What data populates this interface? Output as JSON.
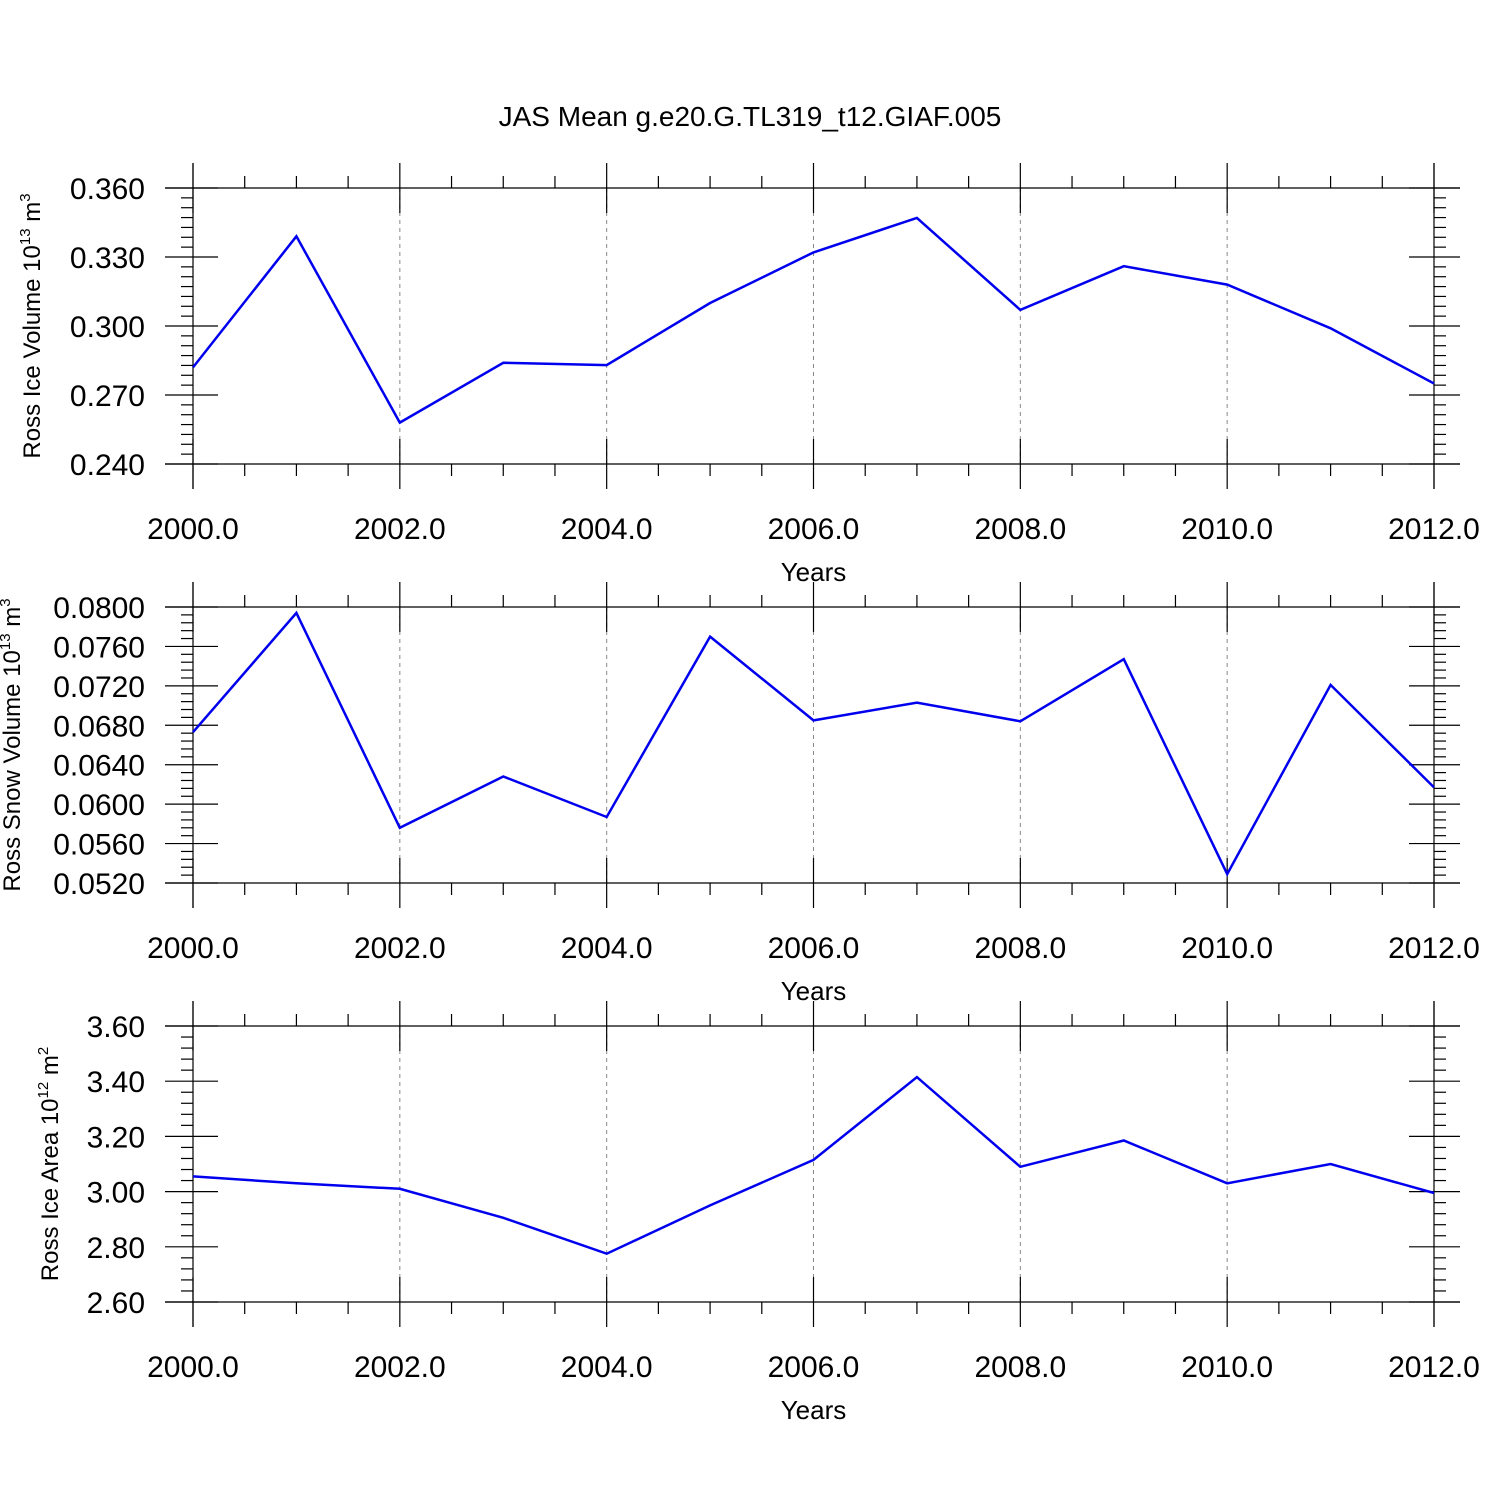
{
  "title": "JAS Mean g.e20.G.TL319_t12.GIAF.005",
  "chart_data": [
    {
      "type": "line",
      "title": "JAS Mean g.e20.G.TL319_t12.GIAF.005",
      "xlabel": "Years",
      "ylabel": {
        "main": "Ross Ice Volume 10",
        "sup": "13",
        "unit": " m",
        "unit_sup": "3"
      },
      "x": [
        2000,
        2001,
        2002,
        2003,
        2004,
        2005,
        2006,
        2007,
        2008,
        2009,
        2010,
        2011,
        2012
      ],
      "series": [
        {
          "values": [
            0.282,
            0.339,
            0.258,
            0.284,
            0.283,
            0.31,
            0.332,
            0.347,
            0.307,
            0.326,
            0.318,
            0.299,
            0.275
          ]
        }
      ],
      "xlim": [
        2000,
        2012
      ],
      "ylim": [
        0.24,
        0.36
      ],
      "xticks": [
        "2000.0",
        "2002.0",
        "2004.0",
        "2006.0",
        "2008.0",
        "2010.0",
        "2012.0"
      ],
      "yticks": [
        "0.240",
        "0.270",
        "0.300",
        "0.330",
        "0.360"
      ],
      "grid": "x-major-dashed",
      "color": "#0000ee"
    },
    {
      "type": "line",
      "xlabel": "Years",
      "ylabel": {
        "main": "Ross Snow Volume 10",
        "sup": "13",
        "unit": " m",
        "unit_sup": "3"
      },
      "x": [
        2000,
        2001,
        2002,
        2003,
        2004,
        2005,
        2006,
        2007,
        2008,
        2009,
        2010,
        2011,
        2012
      ],
      "series": [
        {
          "values": [
            0.0673,
            0.0794,
            0.0576,
            0.0628,
            0.0587,
            0.077,
            0.0685,
            0.0703,
            0.0684,
            0.0747,
            0.0529,
            0.0721,
            0.0617
          ]
        }
      ],
      "xlim": [
        2000,
        2012
      ],
      "ylim": [
        0.052,
        0.08
      ],
      "xticks": [
        "2000.0",
        "2002.0",
        "2004.0",
        "2006.0",
        "2008.0",
        "2010.0",
        "2012.0"
      ],
      "yticks": [
        "0.0520",
        "0.0560",
        "0.0600",
        "0.0640",
        "0.0680",
        "0.0720",
        "0.0760",
        "0.0800"
      ],
      "grid": "x-major-dashed",
      "color": "#0000ee"
    },
    {
      "type": "line",
      "xlabel": "Years",
      "ylabel": {
        "main": "Ross Ice Area 10",
        "sup": "12",
        "unit": " m",
        "unit_sup": "2"
      },
      "x": [
        2000,
        2001,
        2002,
        2003,
        2004,
        2005,
        2006,
        2007,
        2008,
        2009,
        2010,
        2011,
        2012
      ],
      "series": [
        {
          "values": [
            3.055,
            3.03,
            3.01,
            2.905,
            2.775,
            2.95,
            3.115,
            3.415,
            3.09,
            3.185,
            3.03,
            3.1,
            2.995
          ]
        }
      ],
      "xlim": [
        2000,
        2012
      ],
      "ylim": [
        2.6,
        3.6
      ],
      "xticks": [
        "2000.0",
        "2002.0",
        "2004.0",
        "2006.0",
        "2008.0",
        "2010.0",
        "2012.0"
      ],
      "yticks": [
        "2.60",
        "2.80",
        "3.00",
        "3.20",
        "3.40",
        "3.60"
      ],
      "grid": "x-major-dashed",
      "color": "#0000ee"
    }
  ]
}
